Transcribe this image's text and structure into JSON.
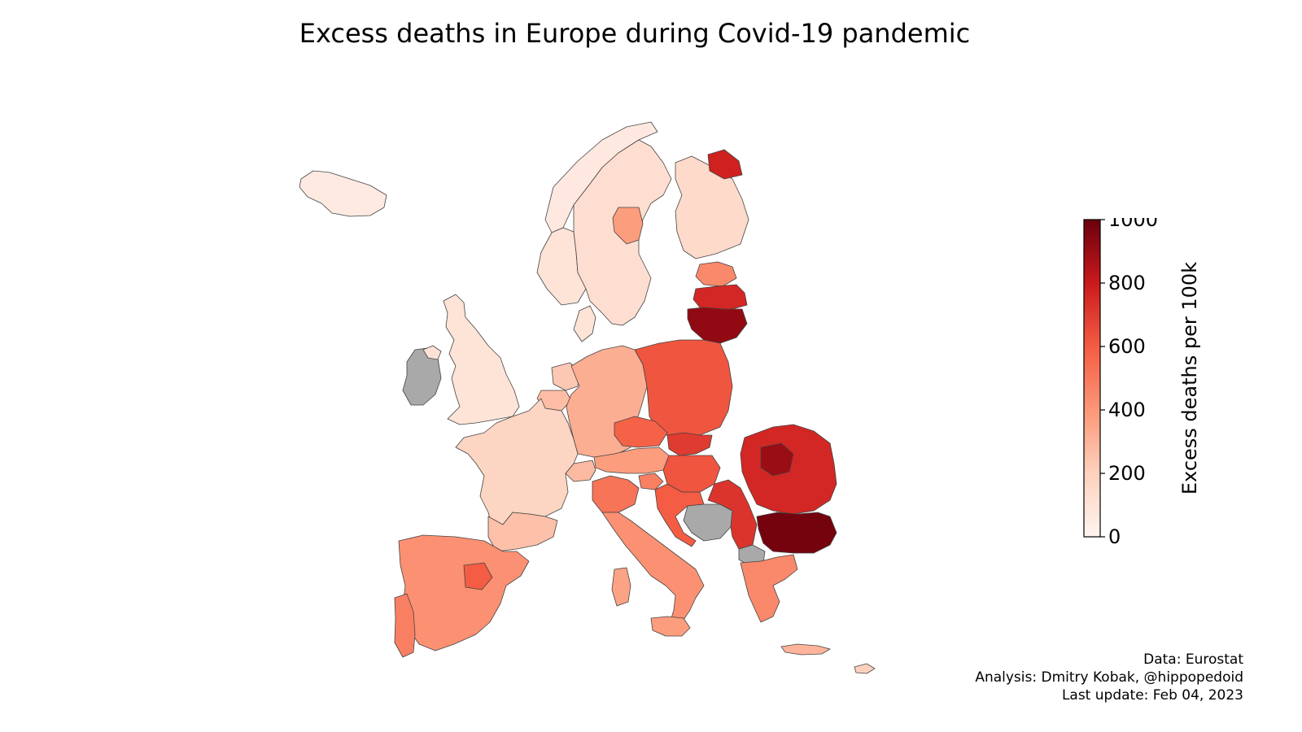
{
  "title": "Excess deaths in Europe during Covid-19 pandemic",
  "colorbar": {
    "label": "Excess deaths per 100k",
    "min": 0,
    "max": 1000,
    "ticks": [
      "0",
      "200",
      "400",
      "600",
      "800",
      "1000"
    ],
    "colors": [
      "#fff5f0",
      "#fdd1be",
      "#fc9777",
      "#f45c43",
      "#ca1a1c",
      "#6b000d"
    ]
  },
  "no_data_color": "#a9a9a9",
  "credits": {
    "line1": "Data: Eurostat",
    "line2": "Analysis: Dmitry Kobak, @hippopedoid",
    "line3": "Last update: Feb 04, 2023"
  },
  "regions": [
    {
      "name": "Iceland",
      "value": 60
    },
    {
      "name": "Ireland",
      "value": null
    },
    {
      "name": "Northern Ireland",
      "value": 110
    },
    {
      "name": "United Kingdom",
      "value": 100
    },
    {
      "name": "Norway North",
      "value": 70
    },
    {
      "name": "Norway South",
      "value": 100
    },
    {
      "name": "Sweden",
      "value": 130
    },
    {
      "name": "Sweden Central",
      "value": 380
    },
    {
      "name": "Finland",
      "value": 150
    },
    {
      "name": "Finland North-East",
      "value": 780
    },
    {
      "name": "Denmark",
      "value": 100
    },
    {
      "name": "Estonia",
      "value": 450
    },
    {
      "name": "Latvia",
      "value": 760
    },
    {
      "name": "Lithuania",
      "value": 920
    },
    {
      "name": "Netherlands",
      "value": 230
    },
    {
      "name": "Belgium",
      "value": 270
    },
    {
      "name": "Germany",
      "value": 320
    },
    {
      "name": "Poland",
      "value": 620
    },
    {
      "name": "Czechia",
      "value": 580
    },
    {
      "name": "Slovakia",
      "value": 700
    },
    {
      "name": "Hungary",
      "value": 620
    },
    {
      "name": "Austria",
      "value": 380
    },
    {
      "name": "Switzerland",
      "value": 280
    },
    {
      "name": "France",
      "value": 180
    },
    {
      "name": "France South",
      "value": 260
    },
    {
      "name": "Spain",
      "value": 420
    },
    {
      "name": "Spain Central",
      "value": 600
    },
    {
      "name": "Portugal",
      "value": 480
    },
    {
      "name": "Italy North",
      "value": 520
    },
    {
      "name": "Italy",
      "value": 420
    },
    {
      "name": "Sardinia",
      "value": 360
    },
    {
      "name": "Sicily",
      "value": 380
    },
    {
      "name": "Slovenia",
      "value": 480
    },
    {
      "name": "Croatia",
      "value": 600
    },
    {
      "name": "Bosnia and Herzegovina",
      "value": null
    },
    {
      "name": "Serbia",
      "value": 720
    },
    {
      "name": "North Macedonia",
      "value": null
    },
    {
      "name": "Romania",
      "value": 760
    },
    {
      "name": "Romania Center",
      "value": 900
    },
    {
      "name": "Bulgaria",
      "value": 980
    },
    {
      "name": "Greece",
      "value": 450
    },
    {
      "name": "Crete",
      "value": 300
    },
    {
      "name": "Cyprus",
      "value": 200
    }
  ]
}
